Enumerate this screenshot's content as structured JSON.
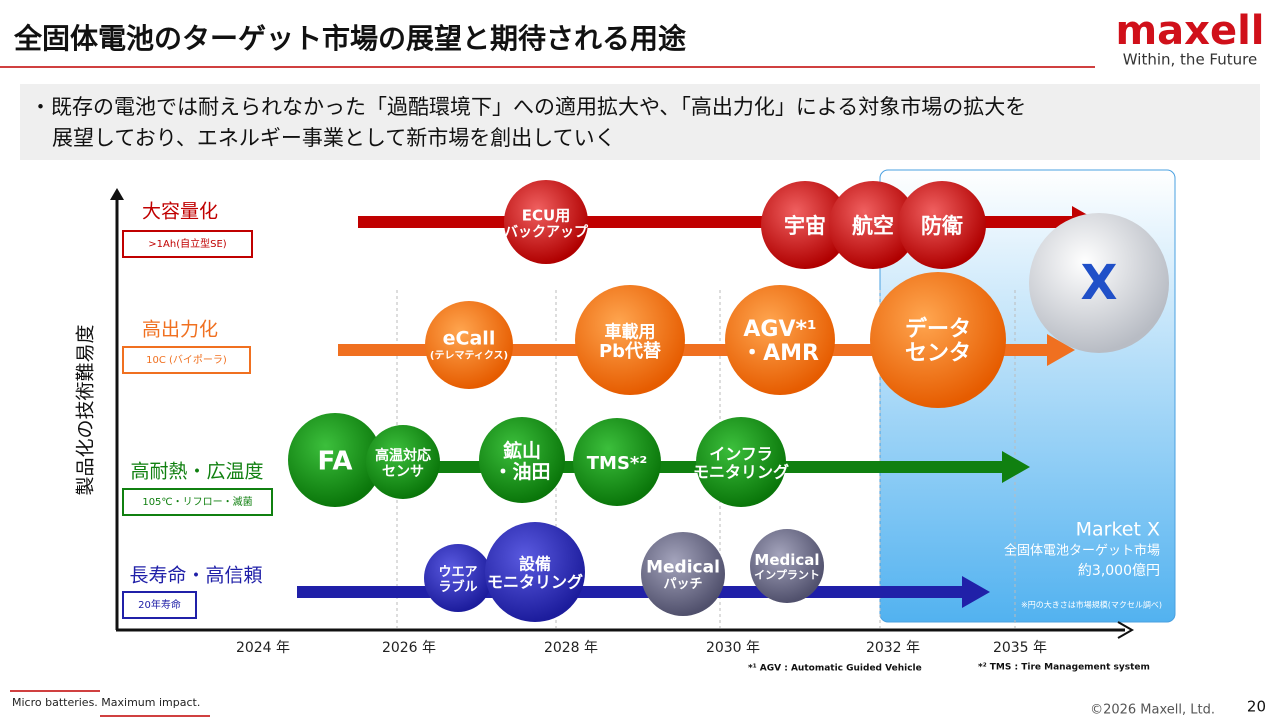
{
  "header": {
    "title": "全固体電池のターゲット市場の展望と期待される用途",
    "logo": "maxell",
    "tagline": "Within, the Future"
  },
  "summary": [
    "・既存の電池では耐えられなかった「過酷環境下」への適用拡大や、「高出力化」による対象市場の拡大を",
    "展望しており、エネルギー事業として新市場を創出していく"
  ],
  "y_axis_label": "製品化の技術難易度",
  "rows": [
    {
      "label": "大容量化",
      "spec": ">1Ah(自立型SE)"
    },
    {
      "label": "高出力化",
      "spec": "10C (バイポーラ)"
    },
    {
      "label": "高耐熱・広温度",
      "spec": "105℃・リフロー・滅菌"
    },
    {
      "label": "長寿命・高信頼",
      "spec": "20年寿命"
    }
  ],
  "circles": [
    [
      "ECU用",
      "バックアップ"
    ],
    [
      "宇宙"
    ],
    [
      "航空"
    ],
    [
      "防衛"
    ],
    [
      "eCall",
      "(テレマティクス)"
    ],
    [
      "車載用",
      "Pb代替"
    ],
    [
      "AGV*¹",
      "・AMR"
    ],
    [
      "データ",
      "センタ"
    ],
    [
      "FA"
    ],
    [
      "高温対応",
      "センサ"
    ],
    [
      "鉱山",
      "・油田"
    ],
    [
      "TMS*²"
    ],
    [
      "インフラ",
      "モニタリング"
    ],
    [
      "ウエア",
      "ラブル"
    ],
    [
      "設備",
      "モニタリング"
    ],
    [
      "Medical",
      "パッチ"
    ],
    [
      "Medical",
      "インプラント"
    ]
  ],
  "x_circle": "X",
  "years": [
    "2024 年",
    "2026 年",
    "2028 年",
    "2030 年",
    "2032 年",
    "2035 年"
  ],
  "market": {
    "name": "Market X",
    "desc": "全固体電池ターゲット市場",
    "size": "約3,000億円",
    "note": "※円の大きさは市場規模(マクセル調べ)"
  },
  "footnotes": [
    "*¹ AGV : Automatic Guided  Vehicle",
    "*² TMS : Tire Management system"
  ],
  "footer": {
    "slogan": "Micro batteries. Maximum impact.",
    "copyright": "©2026 Maxell, Ltd.",
    "page": "20"
  }
}
